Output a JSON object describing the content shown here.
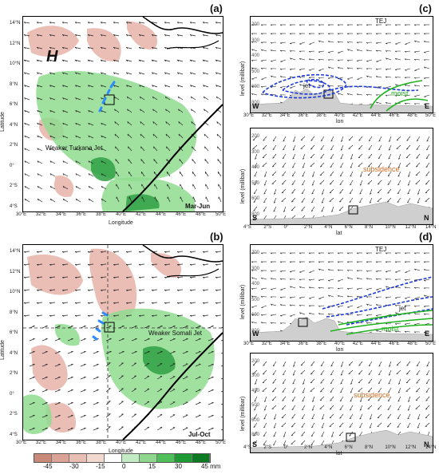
{
  "panels": {
    "a": {
      "letter": "(a)",
      "season": "Mar-Jun",
      "high_marker": "H",
      "jet_label": "Weaker Turkana Jet",
      "xlabel": "Longitude",
      "ylabel": "Latitude",
      "lon_ticks": [
        "30°E",
        "32°E",
        "34°E",
        "36°E",
        "38°E",
        "40°E",
        "42°E",
        "44°E",
        "46°E",
        "48°E",
        "50°E"
      ],
      "lat_ticks": [
        "14°N",
        "12°N",
        "10°N",
        "8°N",
        "6°N",
        "4°N",
        "2°N",
        "0°",
        "2°S",
        "4°S"
      ]
    },
    "b": {
      "letter": "(b)",
      "season": "Jul-Oct",
      "jet_label": "Weaker Somali Jet",
      "xlabel": "Longitude",
      "ylabel": "Latitude",
      "lon_ticks": [
        "30°E",
        "32°E",
        "34°E",
        "36°E",
        "38°E",
        "40°E",
        "42°E",
        "44°E",
        "46°E",
        "48°E",
        "50°E"
      ],
      "lat_ticks": [
        "14°N",
        "12°N",
        "10°N",
        "8°N",
        "6°N",
        "4°N",
        "2°N",
        "0°",
        "2°S",
        "4°S"
      ]
    },
    "c": {
      "letter": "(c)",
      "upper": {
        "tej_label": "TEJ",
        "jet_label": "jet",
        "moist_label": "moist",
        "west": "W",
        "east": "E",
        "xlabel": "lon",
        "ylabel": "level (millibar)",
        "x_ticks": [
          "30°E",
          "32°E",
          "34°E",
          "36°E",
          "38°E",
          "40°E",
          "42°E",
          "44°E",
          "46°E",
          "48°E",
          "50°E"
        ],
        "y_ticks": [
          "200",
          "300",
          "400",
          "500",
          "600",
          "800"
        ]
      },
      "lower": {
        "subsidence_label": "subsidence",
        "south": "S",
        "north": "N",
        "xlabel": "lat",
        "ylabel": "level (millibar)",
        "x_ticks": [
          "4°S",
          "2°S",
          "0°",
          "2°N",
          "4°N",
          "6°N",
          "8°N",
          "10°N",
          "12°N",
          "14°N"
        ],
        "y_ticks": [
          "200",
          "300",
          "400",
          "500",
          "600",
          "800"
        ]
      }
    },
    "d": {
      "letter": "(d)",
      "upper": {
        "tej_label": "TEJ",
        "jet_label": "jet",
        "moist_label": "moist",
        "west": "W",
        "east": "E",
        "xlabel": "lon",
        "ylabel": "level (millibar)",
        "x_ticks": [
          "30°E",
          "32°E",
          "34°E",
          "36°E",
          "38°E",
          "40°E",
          "42°E",
          "44°E",
          "46°E",
          "48°E",
          "50°E"
        ],
        "y_ticks": [
          "200",
          "300",
          "400",
          "500",
          "600",
          "800"
        ]
      },
      "lower": {
        "subsidence_label": "subsidence",
        "south": "S",
        "north": "N",
        "xlabel": "lat",
        "ylabel": "level (millibar)",
        "x_ticks": [
          "4°S",
          "2°S",
          "0°",
          "2°N",
          "4°N",
          "6°N",
          "8°N",
          "10°N",
          "12°N",
          "14°N"
        ],
        "y_ticks": [
          "200",
          "300",
          "400",
          "500",
          "600",
          "800"
        ]
      }
    }
  },
  "colorbar": {
    "labels": [
      "-45",
      "-30",
      "-15",
      "0",
      "15",
      "30",
      "45 mm"
    ],
    "colors": [
      "#c98a7a",
      "#dba396",
      "#e8bdb2",
      "#f3d8d0",
      "#ffffff",
      "#c4ecc4",
      "#8fd78f",
      "#4fbf5a",
      "#1e9a35",
      "#0c7a22"
    ]
  },
  "colors": {
    "dry": "#e6b3a8",
    "wet": "#8fdc8f",
    "wet_dark": "#2ea043",
    "terrain": "#cfcfcf",
    "jet_contour": "#1f3bd6",
    "moist_contour": "#1db31d",
    "subsidence_text": "#d2691e",
    "jet_arrow": "#2b8cff"
  }
}
